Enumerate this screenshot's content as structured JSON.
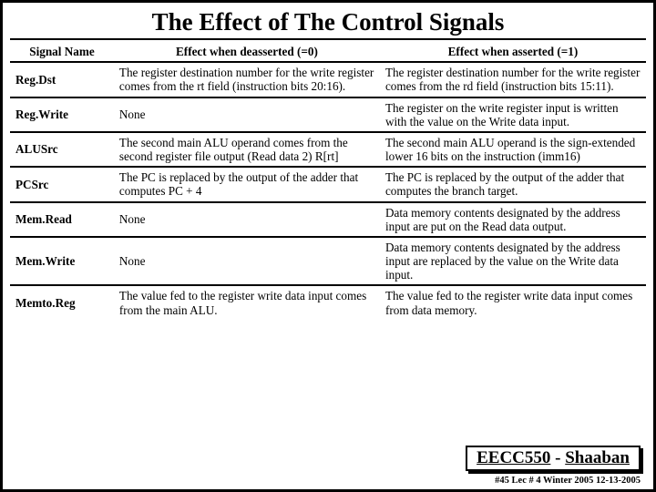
{
  "title": "The Effect of The Control Signals",
  "columns": {
    "name": "Signal Name",
    "deasserted": "Effect when deasserted (=0)",
    "asserted": "Effect when asserted (=1)"
  },
  "rows": [
    {
      "name": "Reg.Dst",
      "deasserted": "The register destination number for the write register comes from the rt field (instruction bits 20:16).",
      "asserted": "The register destination number for the write register comes from the rd field (instruction bits 15:11)."
    },
    {
      "name": "Reg.Write",
      "deasserted": "None",
      "asserted": "The register on the write register input is written with the value on the Write data input."
    },
    {
      "name": "ALUSrc",
      "deasserted": "The second main ALU operand comes from the second register file output (Read data 2) R[rt]",
      "asserted": "The second main ALU operand is the sign-extended lower 16 bits on the instruction (imm16)"
    },
    {
      "name": "PCSrc",
      "deasserted": "The PC is replaced by the output of the adder that computes PC + 4",
      "asserted": "The PC is replaced by the output of the adder that computes the branch target."
    },
    {
      "name": "Mem.Read",
      "deasserted": "None",
      "asserted": "Data memory contents designated by the address input are put on the Read data output."
    },
    {
      "name": "Mem.Write",
      "deasserted": "None",
      "asserted": "Data memory contents designated by the address input are replaced by the value on the Write data input."
    },
    {
      "name": "Memto.Reg",
      "deasserted": "The value fed to the register write data input comes from the main ALU.",
      "asserted": "The value fed to the register write data input comes from data memory."
    }
  ],
  "footer": {
    "course": "EECC550",
    "dash": " - ",
    "author": "Shaaban",
    "line": "#45  Lec # 4  Winter 2005  12-13-2005"
  },
  "colors": {
    "text": "#000000",
    "background": "#ffffff",
    "border": "#000000"
  }
}
